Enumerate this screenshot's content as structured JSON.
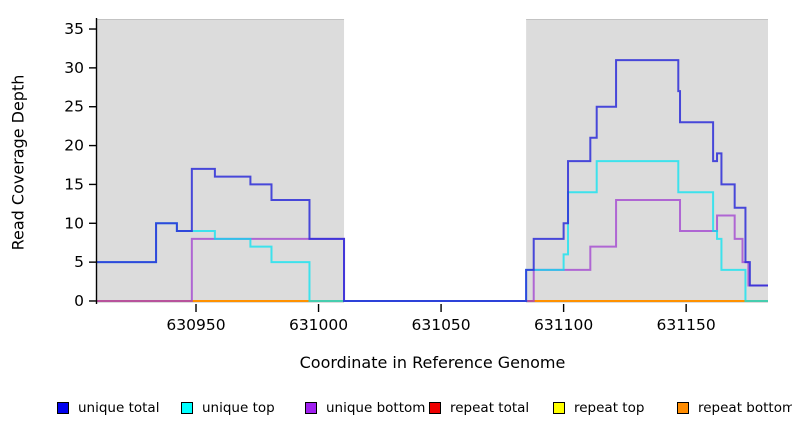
{
  "chart_data": {
    "type": "line",
    "subtype": "step-coverage",
    "title": "",
    "xlabel": "Coordinate in Reference Genome",
    "ylabel": "Read Coverage Depth",
    "xlim": [
      630909.6,
      631183.4
    ],
    "ylim": [
      -0.26,
      36.29
    ],
    "xticks": [
      630950,
      631000,
      631050,
      631100,
      631150
    ],
    "yticks": [
      0,
      5,
      10,
      15,
      20,
      25,
      30,
      35
    ],
    "grid": false,
    "panel_shade_color": "#dcdcdc",
    "unshaded_gap": {
      "from": 631010.4,
      "to": 631084.7
    },
    "masked_regions": [
      {
        "from": 630909.6,
        "to": 631010.4
      },
      {
        "from": 631084.7,
        "to": 631183.4
      }
    ],
    "series": [
      {
        "name": "repeat total",
        "color": "#ee2222",
        "opacity": 1,
        "points": [
          [
            630909.6,
            0
          ],
          [
            631183.4,
            0
          ]
        ]
      },
      {
        "name": "repeat top",
        "color": "#ffff00",
        "opacity": 1,
        "points": [
          [
            630909.6,
            0
          ],
          [
            631183.4,
            0
          ]
        ]
      },
      {
        "name": "repeat bottom",
        "color": "#ff9100",
        "opacity": 1,
        "points": [
          [
            630909.6,
            0
          ],
          [
            631183.4,
            0
          ]
        ]
      },
      {
        "name": "unique bottom",
        "color": "#a03fd0",
        "opacity": 0.75,
        "points": [
          [
            630909.6,
            0
          ],
          [
            630948.3,
            0
          ],
          [
            630948.3,
            8
          ],
          [
            631010.4,
            8
          ],
          [
            631010.4,
            0
          ],
          [
            631087.8,
            0
          ],
          [
            631087.8,
            4
          ],
          [
            631110.9,
            4
          ],
          [
            631110.9,
            7
          ],
          [
            631121.4,
            7
          ],
          [
            631121.4,
            13
          ],
          [
            631147.5,
            13
          ],
          [
            631147.5,
            9
          ],
          [
            631162.6,
            9
          ],
          [
            631162.6,
            11
          ],
          [
            631169.8,
            11
          ],
          [
            631169.8,
            8
          ],
          [
            631173.0,
            8
          ],
          [
            631173.0,
            5
          ],
          [
            631175.4,
            5
          ],
          [
            631175.4,
            2
          ],
          [
            631183.4,
            2
          ]
        ]
      },
      {
        "name": "unique top",
        "color": "#00e5f2",
        "opacity": 0.72,
        "points": [
          [
            630909.6,
            5
          ],
          [
            630933.7,
            5
          ],
          [
            630933.7,
            10
          ],
          [
            630942.2,
            10
          ],
          [
            630942.2,
            9
          ],
          [
            630957.7,
            9
          ],
          [
            630957.7,
            8
          ],
          [
            630972.2,
            8
          ],
          [
            630972.2,
            7
          ],
          [
            630980.8,
            7
          ],
          [
            630980.8,
            5
          ],
          [
            630996.3,
            5
          ],
          [
            630996.3,
            0
          ],
          [
            631084.7,
            0
          ],
          [
            631084.7,
            4
          ],
          [
            631100.0,
            4
          ],
          [
            631100.0,
            6
          ],
          [
            631101.8,
            6
          ],
          [
            631101.8,
            14
          ],
          [
            631113.5,
            14
          ],
          [
            631113.5,
            18
          ],
          [
            631146.8,
            18
          ],
          [
            631146.8,
            14
          ],
          [
            631161.0,
            14
          ],
          [
            631161.0,
            9
          ],
          [
            631162.6,
            9
          ],
          [
            631162.6,
            8
          ],
          [
            631164.4,
            8
          ],
          [
            631164.4,
            4
          ],
          [
            631174.2,
            4
          ],
          [
            631174.2,
            0
          ],
          [
            631183.4,
            0
          ]
        ]
      },
      {
        "name": "unique total",
        "color": "#2d2dd8",
        "opacity": 0.85,
        "points": [
          [
            630909.6,
            5
          ],
          [
            630933.7,
            5
          ],
          [
            630933.7,
            10
          ],
          [
            630942.2,
            10
          ],
          [
            630942.2,
            9
          ],
          [
            630948.3,
            9
          ],
          [
            630948.3,
            17
          ],
          [
            630957.7,
            17
          ],
          [
            630957.7,
            16
          ],
          [
            630972.2,
            16
          ],
          [
            630972.2,
            15
          ],
          [
            630980.8,
            15
          ],
          [
            630980.8,
            13
          ],
          [
            630996.3,
            13
          ],
          [
            630996.3,
            8
          ],
          [
            631010.4,
            8
          ],
          [
            631010.4,
            0
          ],
          [
            631084.7,
            0
          ],
          [
            631084.7,
            4
          ],
          [
            631087.8,
            4
          ],
          [
            631087.8,
            8
          ],
          [
            631100.0,
            8
          ],
          [
            631100.0,
            10
          ],
          [
            631101.8,
            10
          ],
          [
            631101.8,
            18
          ],
          [
            631110.9,
            18
          ],
          [
            631110.9,
            21
          ],
          [
            631113.5,
            21
          ],
          [
            631113.5,
            25
          ],
          [
            631121.4,
            25
          ],
          [
            631121.4,
            31
          ],
          [
            631146.8,
            31
          ],
          [
            631146.8,
            27
          ],
          [
            631147.5,
            27
          ],
          [
            631147.5,
            23
          ],
          [
            631161.0,
            23
          ],
          [
            631161.0,
            18
          ],
          [
            631162.6,
            18
          ],
          [
            631162.6,
            19
          ],
          [
            631164.4,
            19
          ],
          [
            631164.4,
            15
          ],
          [
            631169.8,
            15
          ],
          [
            631169.8,
            12
          ],
          [
            631174.2,
            12
          ],
          [
            631174.2,
            5
          ],
          [
            631176.0,
            5
          ],
          [
            631176.0,
            2
          ],
          [
            631183.4,
            2
          ]
        ]
      }
    ],
    "legend": {
      "position": "bottom",
      "items": [
        {
          "label": "unique total",
          "color": "#0000ee"
        },
        {
          "label": "unique top",
          "color": "#00ffff"
        },
        {
          "label": "unique bottom",
          "color": "#a020f0"
        },
        {
          "label": "repeat total",
          "color": "#ee0000"
        },
        {
          "label": "repeat top",
          "color": "#ffff00"
        },
        {
          "label": "repeat bottom",
          "color": "#ff8c00"
        }
      ]
    }
  }
}
